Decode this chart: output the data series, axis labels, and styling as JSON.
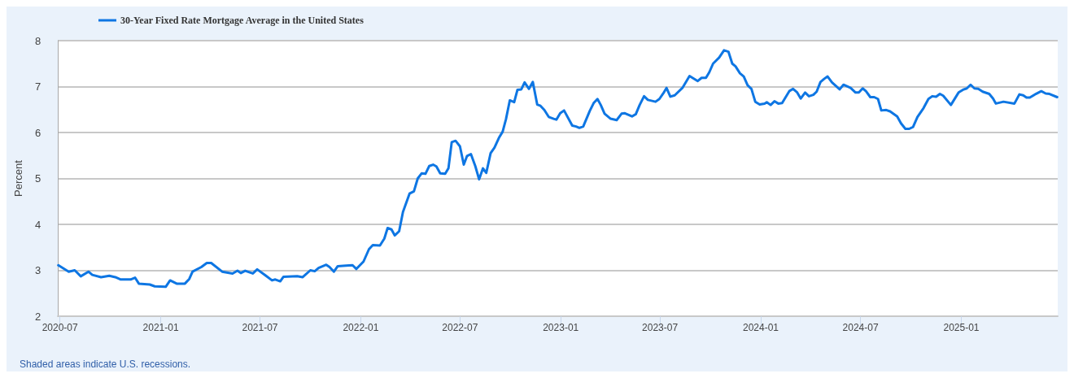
{
  "chart_data": {
    "type": "line",
    "ylabel": "Percent",
    "legend": "top left",
    "grid": "y",
    "marker": "none",
    "line_style": "solid",
    "xlim": [
      "2020-06-27",
      "2025-06-26"
    ],
    "ylim": [
      2,
      8
    ],
    "yticks": [
      2,
      3,
      4,
      5,
      6,
      7,
      8
    ],
    "xticks": [
      {
        "value": "2020-07-01",
        "label": "2020-07"
      },
      {
        "value": "2021-01-01",
        "label": "2021-01"
      },
      {
        "value": "2021-07-01",
        "label": "2021-07"
      },
      {
        "value": "2022-01-01",
        "label": "2022-01"
      },
      {
        "value": "2022-07-01",
        "label": "2022-07"
      },
      {
        "value": "2023-01-01",
        "label": "2023-01"
      },
      {
        "value": "2023-07-01",
        "label": "2023-07"
      },
      {
        "value": "2024-01-01",
        "label": "2024-01"
      },
      {
        "value": "2024-07-01",
        "label": "2024-07"
      },
      {
        "value": "2025-01-01",
        "label": "2025-01"
      }
    ],
    "annotations": [
      "Shaded areas indicate U.S. recessions."
    ],
    "series": [
      {
        "name": "30-Year Fixed Rate Mortgage Average in the United States",
        "color": "#0e76e3",
        "x": [
          "2020-06-28",
          "2020-07-17",
          "2020-07-28",
          "2020-08-08",
          "2020-08-22",
          "2020-08-29",
          "2020-09-14",
          "2020-09-29",
          "2020-10-10",
          "2020-10-20",
          "2020-11-07",
          "2020-11-15",
          "2020-11-22",
          "2020-12-12",
          "2020-12-21",
          "2021-01-10",
          "2021-01-18",
          "2021-01-30",
          "2021-02-14",
          "2021-02-22",
          "2021-02-28",
          "2021-03-16",
          "2021-03-26",
          "2021-04-03",
          "2021-04-23",
          "2021-05-12",
          "2021-05-21",
          "2021-05-27",
          "2021-06-04",
          "2021-06-18",
          "2021-06-26",
          "2021-07-11",
          "2021-07-23",
          "2021-07-29",
          "2021-08-07",
          "2021-08-13",
          "2021-09-07",
          "2021-09-17",
          "2021-10-01",
          "2021-10-09",
          "2021-10-16",
          "2021-10-30",
          "2021-11-05",
          "2021-11-13",
          "2021-11-20",
          "2021-12-05",
          "2021-12-17",
          "2021-12-24",
          "2022-01-06",
          "2022-01-16",
          "2022-01-23",
          "2022-02-05",
          "2022-02-13",
          "2022-02-19",
          "2022-02-26",
          "2022-03-04",
          "2022-03-12",
          "2022-03-19",
          "2022-03-31",
          "2022-04-08",
          "2022-04-15",
          "2022-04-22",
          "2022-04-29",
          "2022-05-06",
          "2022-05-13",
          "2022-05-19",
          "2022-05-26",
          "2022-06-04",
          "2022-06-10",
          "2022-06-16",
          "2022-06-23",
          "2022-07-01",
          "2022-07-08",
          "2022-07-14",
          "2022-07-21",
          "2022-07-29",
          "2022-08-05",
          "2022-08-12",
          "2022-08-18",
          "2022-08-26",
          "2022-09-02",
          "2022-09-10",
          "2022-09-17",
          "2022-09-23",
          "2022-09-30",
          "2022-10-08",
          "2022-10-14",
          "2022-10-21",
          "2022-10-27",
          "2022-11-04",
          "2022-11-11",
          "2022-11-19",
          "2022-11-25",
          "2022-12-02",
          "2022-12-10",
          "2022-12-19",
          "2022-12-24",
          "2022-12-31",
          "2023-01-07",
          "2023-01-22",
          "2023-01-29",
          "2023-02-04",
          "2023-02-11",
          "2023-02-23",
          "2023-03-02",
          "2023-03-09",
          "2023-03-15",
          "2023-03-22",
          "2023-04-02",
          "2023-04-13",
          "2023-04-22",
          "2023-04-28",
          "2023-05-11",
          "2023-05-18",
          "2023-05-25",
          "2023-06-02",
          "2023-06-09",
          "2023-06-23",
          "2023-06-30",
          "2023-07-07",
          "2023-07-13",
          "2023-07-20",
          "2023-07-28",
          "2023-08-11",
          "2023-08-24",
          "2023-09-08",
          "2023-09-15",
          "2023-09-23",
          "2023-09-29",
          "2023-10-06",
          "2023-10-17",
          "2023-10-26",
          "2023-11-03",
          "2023-11-10",
          "2023-11-16",
          "2023-11-24",
          "2023-12-01",
          "2023-12-08",
          "2023-12-15",
          "2023-12-22",
          "2023-12-30",
          "2024-01-08",
          "2024-01-12",
          "2024-01-19",
          "2024-01-26",
          "2024-02-02",
          "2024-02-09",
          "2024-02-22",
          "2024-02-29",
          "2024-03-07",
          "2024-03-14",
          "2024-03-22",
          "2024-03-29",
          "2024-04-06",
          "2024-04-12",
          "2024-04-19",
          "2024-04-26",
          "2024-05-02",
          "2024-05-10",
          "2024-05-24",
          "2024-05-31",
          "2024-06-13",
          "2024-06-22",
          "2024-06-28",
          "2024-07-05",
          "2024-07-11",
          "2024-07-19",
          "2024-07-26",
          "2024-08-02",
          "2024-08-08",
          "2024-08-17",
          "2024-08-24",
          "2024-09-06",
          "2024-09-13",
          "2024-09-21",
          "2024-09-28",
          "2024-10-05",
          "2024-10-13",
          "2024-10-24",
          "2024-11-02",
          "2024-11-09",
          "2024-11-16",
          "2024-11-23",
          "2024-11-29",
          "2024-12-13",
          "2024-12-27",
          "2025-01-04",
          "2025-01-11",
          "2025-01-18",
          "2025-01-25",
          "2025-02-01",
          "2025-02-09",
          "2025-02-21",
          "2025-02-28",
          "2025-03-05",
          "2025-03-19",
          "2025-04-08",
          "2025-04-17",
          "2025-04-24",
          "2025-04-30",
          "2025-05-06",
          "2025-05-17",
          "2025-05-27",
          "2025-06-04",
          "2025-06-11",
          "2025-06-25"
        ],
        "values": [
          3.11,
          2.97,
          3.0,
          2.87,
          2.97,
          2.9,
          2.85,
          2.88,
          2.85,
          2.8,
          2.8,
          2.84,
          2.71,
          2.69,
          2.65,
          2.64,
          2.78,
          2.71,
          2.71,
          2.81,
          2.97,
          3.07,
          3.16,
          3.16,
          2.97,
          2.93,
          2.99,
          2.94,
          2.99,
          2.93,
          3.02,
          2.89,
          2.78,
          2.8,
          2.76,
          2.86,
          2.87,
          2.85,
          3.0,
          2.98,
          3.05,
          3.12,
          3.07,
          2.97,
          3.09,
          3.1,
          3.11,
          3.03,
          3.19,
          3.46,
          3.55,
          3.54,
          3.69,
          3.92,
          3.89,
          3.76,
          3.85,
          4.27,
          4.67,
          4.72,
          5.0,
          5.11,
          5.1,
          5.27,
          5.3,
          5.26,
          5.11,
          5.1,
          5.22,
          5.79,
          5.82,
          5.7,
          5.3,
          5.49,
          5.53,
          5.27,
          4.98,
          5.22,
          5.12,
          5.55,
          5.67,
          5.88,
          6.02,
          6.29,
          6.7,
          6.66,
          6.93,
          6.94,
          7.09,
          6.95,
          7.1,
          6.61,
          6.58,
          6.49,
          6.34,
          6.3,
          6.28,
          6.42,
          6.48,
          6.15,
          6.13,
          6.1,
          6.13,
          6.47,
          6.64,
          6.73,
          6.6,
          6.41,
          6.3,
          6.27,
          6.41,
          6.42,
          6.35,
          6.4,
          6.6,
          6.79,
          6.71,
          6.67,
          6.73,
          6.85,
          6.97,
          6.78,
          6.81,
          6.97,
          7.23,
          7.12,
          7.19,
          7.19,
          7.31,
          7.5,
          7.63,
          7.79,
          7.76,
          7.5,
          7.44,
          7.29,
          7.22,
          7.03,
          6.95,
          6.67,
          6.61,
          6.63,
          6.66,
          6.6,
          6.68,
          6.63,
          6.64,
          6.9,
          6.95,
          6.88,
          6.74,
          6.87,
          6.79,
          6.82,
          6.89,
          7.1,
          7.17,
          7.22,
          7.09,
          6.94,
          7.04,
          6.97,
          6.87,
          6.87,
          6.96,
          6.9,
          6.77,
          6.77,
          6.73,
          6.48,
          6.49,
          6.46,
          6.35,
          6.2,
          6.08,
          6.08,
          6.12,
          6.34,
          6.53,
          6.73,
          6.79,
          6.78,
          6.84,
          6.8,
          6.6,
          6.87,
          6.93,
          6.96,
          7.04,
          6.96,
          6.95,
          6.89,
          6.84,
          6.74,
          6.63,
          6.67,
          6.63,
          6.83,
          6.81,
          6.76,
          6.76,
          6.84,
          6.9,
          6.85,
          6.84,
          6.77
        ]
      }
    ]
  }
}
